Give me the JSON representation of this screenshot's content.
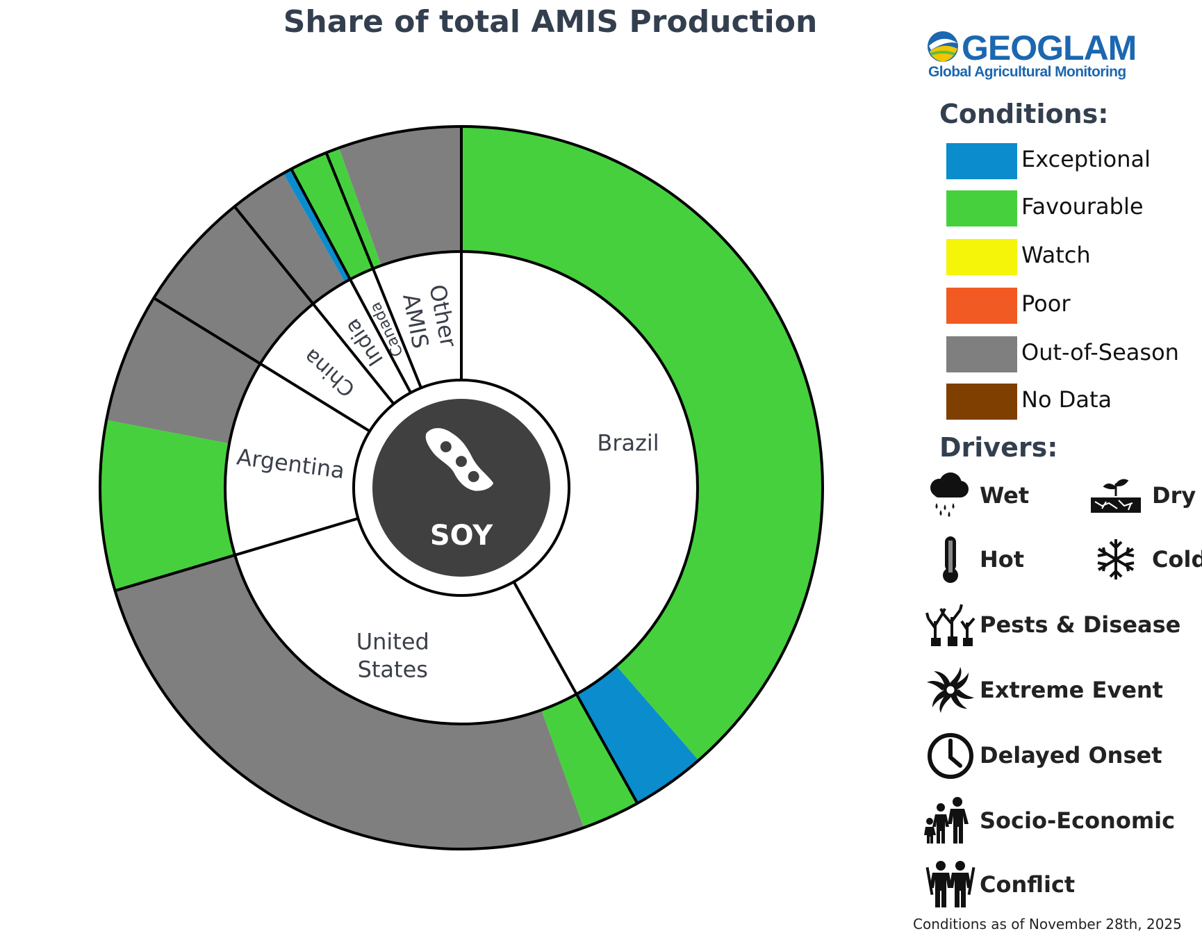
{
  "chart_data": {
    "type": "donut",
    "title": "Share of total AMIS Production",
    "center_label": "SOY",
    "center_icon": "soybean-pod-icon",
    "inner_ring": [
      {
        "name": "Brazil",
        "share": 0.419
      },
      {
        "name": "United States",
        "share": 0.285
      },
      {
        "name": "Argentina",
        "share": 0.134
      },
      {
        "name": "China",
        "share": 0.054
      },
      {
        "name": "India",
        "share": 0.03
      },
      {
        "name": "Canada",
        "share": 0.017
      },
      {
        "name": "Other AMIS",
        "share": 0.061
      }
    ],
    "outer_ring": [
      {
        "country": "Brazil",
        "segments": [
          {
            "condition": "Favourable",
            "share": 0.386
          },
          {
            "condition": "Exceptional",
            "share": 0.033
          }
        ]
      },
      {
        "country": "United States",
        "segments": [
          {
            "condition": "Favourable",
            "share": 0.026
          },
          {
            "condition": "Out-of-Season",
            "share": 0.259
          }
        ]
      },
      {
        "country": "Argentina",
        "segments": [
          {
            "condition": "Favourable",
            "share": 0.076
          },
          {
            "condition": "Out-of-Season",
            "share": 0.058
          }
        ]
      },
      {
        "country": "China",
        "segments": [
          {
            "condition": "Out-of-Season",
            "share": 0.054
          }
        ]
      },
      {
        "country": "India",
        "segments": [
          {
            "condition": "Out-of-Season",
            "share": 0.026
          },
          {
            "condition": "Exceptional",
            "share": 0.004
          }
        ]
      },
      {
        "country": "Canada",
        "segments": [
          {
            "condition": "Favourable",
            "share": 0.017
          }
        ]
      },
      {
        "country": "Other AMIS",
        "segments": [
          {
            "condition": "Favourable",
            "share": 0.006
          },
          {
            "condition": "Out-of-Season",
            "share": 0.055
          }
        ]
      }
    ],
    "legend_conditions": [
      {
        "label": "Exceptional",
        "color": "#0b8ccc"
      },
      {
        "label": "Favourable",
        "color": "#46d03e"
      },
      {
        "label": "Watch",
        "color": "#f5f50a"
      },
      {
        "label": "Poor",
        "color": "#f15a22"
      },
      {
        "label": "Out-of-Season",
        "color": "#7f7f7f"
      },
      {
        "label": "No Data",
        "color": "#7f3f00"
      }
    ]
  },
  "logo": {
    "name": "GEOGLAM",
    "tagline": "Global Agricultural Monitoring"
  },
  "legend": {
    "conditions_title": "Conditions:",
    "drivers_title": "Drivers:"
  },
  "drivers": [
    {
      "label": "Wet",
      "icon": "rain-cloud-icon"
    },
    {
      "label": "Dry",
      "icon": "dry-soil-icon"
    },
    {
      "label": "Hot",
      "icon": "thermometer-icon"
    },
    {
      "label": "Cold",
      "icon": "snowflake-icon"
    },
    {
      "label": "Pests & Disease",
      "icon": "pest-trees-icon"
    },
    {
      "label": "Extreme Event",
      "icon": "hurricane-icon"
    },
    {
      "label": "Delayed Onset",
      "icon": "clock-icon"
    },
    {
      "label": "Socio-Economic",
      "icon": "family-icon"
    },
    {
      "label": "Conflict",
      "icon": "soldiers-icon"
    }
  ],
  "footnote": "Conditions as of November 28th, 2025"
}
